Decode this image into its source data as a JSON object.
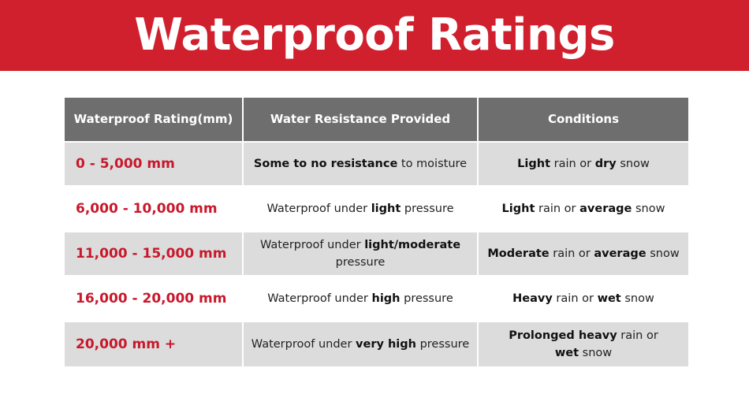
{
  "title": "Waterproof Ratings",
  "colors": {
    "banner": "#d0202e",
    "header_bg": "#6e6e6e",
    "rating_text": "#c8182b",
    "row_shade": "#dcdcdc"
  },
  "table": {
    "headers": [
      "Waterproof Rating(mm)",
      "Water Resistance Provided",
      "Conditions"
    ],
    "rows": [
      {
        "rating": "0 - 5,000 mm",
        "resistance": {
          "b1": "Some to no resistance",
          "t1": " to moisture"
        },
        "conditions": {
          "b1": "Light",
          "t1": " rain or ",
          "b2": "dry",
          "t2": " snow"
        }
      },
      {
        "rating": "6,000 - 10,000 mm",
        "resistance": {
          "t0": "Waterproof under ",
          "b1": "light",
          "t1": " pressure"
        },
        "conditions": {
          "b1": "Light",
          "t1": " rain or ",
          "b2": "average",
          "t2": " snow"
        }
      },
      {
        "rating": "11,000 - 15,000 mm",
        "resistance": {
          "t0": "Waterproof under ",
          "b1": "light/moderate",
          "t1": " pressure"
        },
        "conditions": {
          "b1": "Moderate",
          "t1": " rain or ",
          "b2": "average",
          "t2": " snow"
        }
      },
      {
        "rating": "16,000 - 20,000 mm",
        "resistance": {
          "t0": "Waterproof under ",
          "b1": "high",
          "t1": " pressure"
        },
        "conditions": {
          "b1": "Heavy",
          "t1": " rain or ",
          "b2": "wet",
          "t2": " snow"
        }
      },
      {
        "rating": "20,000 mm +",
        "resistance": {
          "t0": "Waterproof under ",
          "b1": "very high",
          "t1": " pressure"
        },
        "conditions": {
          "b1": "Prolonged heavy",
          "t1": " rain or ",
          "b2": "wet",
          "t2": " snow"
        }
      }
    ]
  }
}
